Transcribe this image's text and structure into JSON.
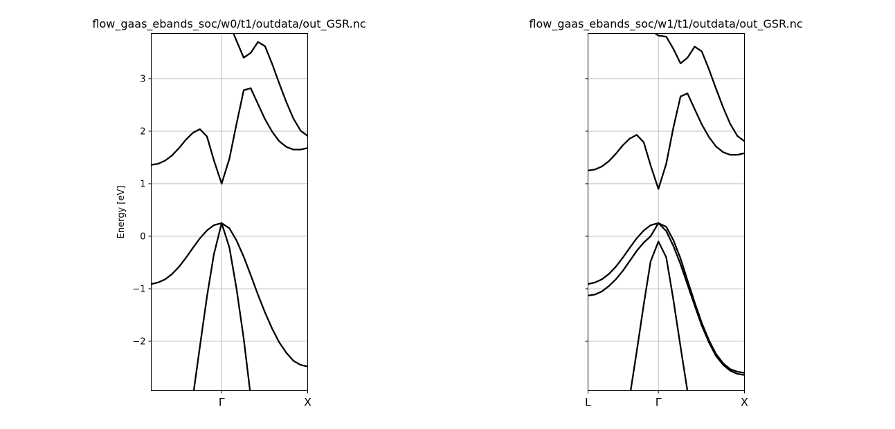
{
  "figure": {
    "style": {
      "line_color": "#000000",
      "grid_color": "#b0b0b0",
      "background": "#ffffff",
      "grid": true
    }
  },
  "chart_data": [
    {
      "type": "line",
      "title": "flow_gaas_ebands_soc/w0/t1/outdata/out_GSR.nc",
      "xlabel": "",
      "ylabel": "Energy [eV]",
      "ylim": [
        -2.94,
        3.86
      ],
      "xlim": [
        0,
        1
      ],
      "yticks": [
        -2,
        -1,
        0,
        1,
        2,
        3
      ],
      "show_ytick_labels": true,
      "kpoint_ticks": [
        {
          "x": 0.45,
          "label": "Γ"
        },
        {
          "x": 1.0,
          "label": "X"
        }
      ],
      "vgrid_x": [
        0.45
      ],
      "series": [
        {
          "x": [
            0.0,
            0.044,
            0.089,
            0.133,
            0.178,
            0.222,
            0.267,
            0.311,
            0.356,
            0.4,
            0.45,
            0.5,
            0.545,
            0.591,
            0.636,
            0.682,
            0.727,
            0.773,
            0.818,
            0.864,
            0.909,
            0.955,
            1.0
          ],
          "y": [
            -0.91,
            -0.88,
            -0.82,
            -0.72,
            -0.58,
            -0.41,
            -0.22,
            -0.04,
            0.11,
            0.21,
            0.25,
            0.15,
            -0.08,
            -0.39,
            -0.74,
            -1.11,
            -1.45,
            -1.76,
            -2.02,
            -2.22,
            -2.37,
            -2.45,
            -2.48
          ]
        },
        {
          "x": [
            0.267,
            0.311,
            0.356,
            0.4,
            0.45,
            0.5,
            0.545,
            0.591,
            0.636
          ],
          "y": [
            -3.05,
            -2.1,
            -1.15,
            -0.35,
            0.25,
            -0.22,
            -1.0,
            -1.95,
            -3.05
          ]
        },
        {
          "x": [
            0.0,
            0.044,
            0.089,
            0.133,
            0.178,
            0.222,
            0.267,
            0.311,
            0.356,
            0.4,
            0.45,
            0.5,
            0.545,
            0.591,
            0.636,
            0.682,
            0.727,
            0.773,
            0.818,
            0.864,
            0.909,
            0.955,
            1.0
          ],
          "y": [
            1.36,
            1.38,
            1.44,
            1.54,
            1.68,
            1.84,
            1.97,
            2.04,
            1.9,
            1.45,
            1.0,
            1.48,
            2.14,
            2.78,
            2.82,
            2.52,
            2.23,
            1.99,
            1.81,
            1.7,
            1.65,
            1.65,
            1.68
          ]
        },
        {
          "x": [
            0.5,
            0.545,
            0.591,
            0.636,
            0.682,
            0.727,
            0.773,
            0.818,
            0.864,
            0.909,
            0.955,
            1.0
          ],
          "y": [
            4.05,
            3.72,
            3.4,
            3.49,
            3.7,
            3.62,
            3.28,
            2.91,
            2.55,
            2.24,
            2.01,
            1.91
          ]
        }
      ]
    },
    {
      "type": "line",
      "title": "flow_gaas_ebands_soc/w1/t1/outdata/out_GSR.nc",
      "xlabel": "",
      "ylabel": "",
      "ylim": [
        -2.94,
        3.86
      ],
      "xlim": [
        0,
        1
      ],
      "yticks": [
        -2,
        -1,
        0,
        1,
        2,
        3
      ],
      "show_ytick_labels": false,
      "kpoint_ticks": [
        {
          "x": 0.0,
          "label": "L"
        },
        {
          "x": 0.45,
          "label": "Γ"
        },
        {
          "x": 1.0,
          "label": "X"
        }
      ],
      "vgrid_x": [
        0.45
      ],
      "series": [
        {
          "x": [
            0.0,
            0.044,
            0.089,
            0.133,
            0.178,
            0.222,
            0.267,
            0.311,
            0.356,
            0.4,
            0.45,
            0.5,
            0.545,
            0.591,
            0.636,
            0.682,
            0.727,
            0.773,
            0.818,
            0.864,
            0.909,
            0.955,
            1.0
          ],
          "y": [
            -0.91,
            -0.88,
            -0.82,
            -0.72,
            -0.58,
            -0.41,
            -0.22,
            -0.04,
            0.11,
            0.21,
            0.25,
            0.18,
            -0.07,
            -0.42,
            -0.84,
            -1.26,
            -1.65,
            -1.98,
            -2.24,
            -2.42,
            -2.53,
            -2.58,
            -2.6
          ]
        },
        {
          "x": [
            0.0,
            0.044,
            0.089,
            0.133,
            0.178,
            0.222,
            0.267,
            0.311,
            0.356,
            0.4,
            0.45,
            0.5,
            0.545,
            0.591,
            0.636,
            0.682,
            0.727,
            0.773,
            0.818,
            0.864,
            0.909,
            0.955,
            1.0
          ],
          "y": [
            -1.13,
            -1.11,
            -1.05,
            -0.95,
            -0.82,
            -0.66,
            -0.47,
            -0.28,
            -0.12,
            0.0,
            0.25,
            0.1,
            -0.18,
            -0.53,
            -0.92,
            -1.32,
            -1.7,
            -2.02,
            -2.28,
            -2.45,
            -2.56,
            -2.62,
            -2.64
          ]
        },
        {
          "x": [
            0.267,
            0.311,
            0.356,
            0.4,
            0.45,
            0.5,
            0.545,
            0.591,
            0.636,
            0.682
          ],
          "y": [
            -3.05,
            -2.2,
            -1.3,
            -0.48,
            -0.1,
            -0.4,
            -1.2,
            -2.1,
            -2.95,
            -3.05
          ]
        },
        {
          "x": [
            0.0,
            0.044,
            0.089,
            0.133,
            0.178,
            0.222,
            0.267,
            0.311,
            0.356,
            0.4,
            0.45,
            0.5,
            0.545,
            0.591,
            0.636,
            0.682,
            0.727,
            0.773,
            0.818,
            0.864,
            0.909,
            0.955,
            1.0
          ],
          "y": [
            1.25,
            1.27,
            1.33,
            1.43,
            1.57,
            1.73,
            1.86,
            1.93,
            1.79,
            1.35,
            0.9,
            1.38,
            2.06,
            2.66,
            2.72,
            2.42,
            2.13,
            1.89,
            1.71,
            1.6,
            1.55,
            1.55,
            1.58
          ]
        },
        {
          "x": [
            0.356,
            0.4,
            0.45,
            0.5,
            0.545,
            0.591,
            0.636,
            0.682,
            0.727,
            0.773,
            0.818,
            0.864,
            0.909,
            0.955,
            1.0
          ],
          "y": [
            4.05,
            3.92,
            3.82,
            3.8,
            3.57,
            3.29,
            3.4,
            3.61,
            3.52,
            3.18,
            2.81,
            2.45,
            2.14,
            1.91,
            1.81
          ]
        }
      ]
    }
  ]
}
